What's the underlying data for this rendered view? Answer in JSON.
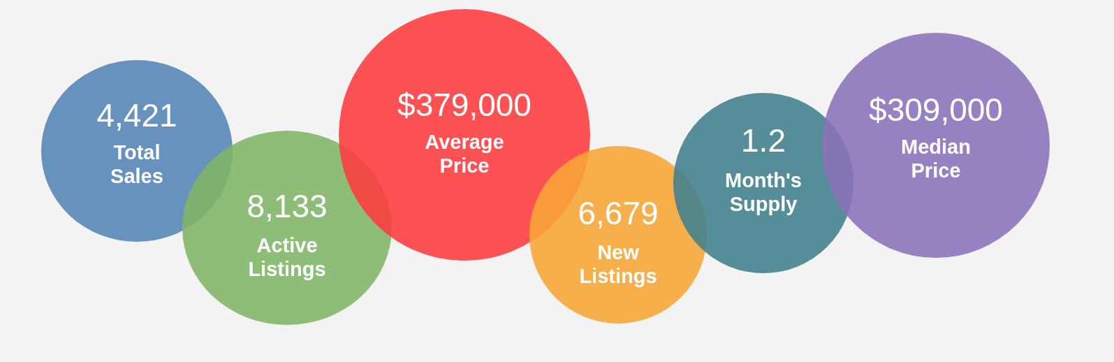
{
  "chart_data": {
    "type": "other",
    "categories": [
      "Total Sales",
      "Active Listings",
      "Average Price",
      "New Listings",
      "Month's Supply",
      "Median Price"
    ],
    "values": [
      4421,
      8133,
      379000,
      6679,
      1.2,
      309000
    ],
    "value_labels": [
      "4,421",
      "8,133",
      "$379,000",
      "6,679",
      "1.2",
      "$309,000"
    ],
    "colors": [
      "#5284b5",
      "#7fb565",
      "#ff3a3d",
      "#f7a534",
      "#3f7f8c",
      "#8a72ba"
    ]
  }
}
